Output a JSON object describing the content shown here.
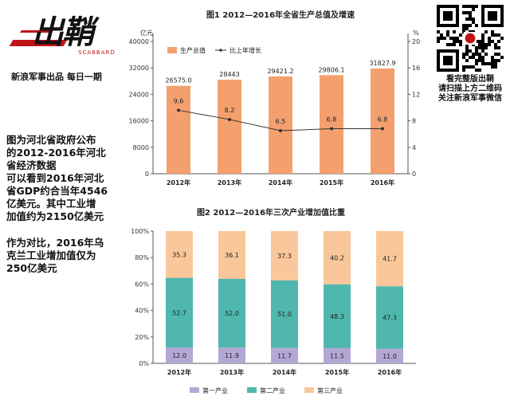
{
  "branding": {
    "logo_text": "出鞘",
    "logo_sub": "SCABBARD",
    "tagline": "新浪军事出品 每日一期",
    "qr_caption": [
      "看完整版出鞘",
      "请扫描上方二维码",
      "关注新浪军事微信"
    ]
  },
  "description": {
    "para1": "图为河北省政府公布\n的2012-2016年河北\n省经济数据\n可以看到2016年河北\n省GDP约合当年4546\n亿美元。其中工业增\n加值约为2150亿美元",
    "para2": "作为对比，2016年乌\n克兰工业增加值仅为\n250亿美元"
  },
  "colors": {
    "gdp_bar": "#f4a06e",
    "growth_line": "#333333",
    "primary": "#b4a7d6",
    "secondary": "#4fb7ad",
    "tertiary": "#f9c79a"
  },
  "chart_data": [
    {
      "type": "bar",
      "title": "图1  2012—2016年全省生产总值及增速",
      "categories": [
        "2012年",
        "2013年",
        "2014年",
        "2015年",
        "2016年"
      ],
      "ylabel_left": "亿元",
      "ylabel_right": "%",
      "ylim_left": [
        0,
        40000
      ],
      "yticks_left": [
        0,
        8000,
        16000,
        24000,
        32000,
        40000
      ],
      "ylim_right": [
        0,
        20
      ],
      "yticks_right": [
        0,
        4,
        8,
        12,
        16,
        20
      ],
      "legend_placement": "top",
      "series": [
        {
          "name": "生产总值",
          "type": "bar",
          "axis": "left",
          "values": [
            26575.0,
            28443,
            29421.2,
            29806.1,
            31827.9
          ],
          "labels": [
            "26575.0",
            "28443",
            "29421.2",
            "29806.1",
            "31827.9"
          ]
        },
        {
          "name": "比上年增长",
          "type": "line",
          "axis": "right",
          "values": [
            9.6,
            8.2,
            6.5,
            6.8,
            6.8
          ],
          "labels": [
            "9.6",
            "8.2",
            "6.5",
            "6.8",
            "6.8"
          ]
        }
      ]
    },
    {
      "type": "bar",
      "stacked": true,
      "title": "图2  2012—2016年三次产业增加值比重",
      "categories": [
        "2012年",
        "2013年",
        "2014年",
        "2015年",
        "2016年"
      ],
      "ylim": [
        0,
        100
      ],
      "yticks": [
        "0%",
        "20%",
        "40%",
        "60%",
        "80%",
        "100%"
      ],
      "legend_placement": "bottom",
      "series": [
        {
          "name": "第一产业",
          "values": [
            12.0,
            11.9,
            11.7,
            11.5,
            11.0
          ],
          "labels": [
            "12.0",
            "11.9",
            "11.7",
            "11.5",
            "11.0"
          ]
        },
        {
          "name": "第二产业",
          "values": [
            52.7,
            52.0,
            51.0,
            48.3,
            47.3
          ],
          "labels": [
            "52.7",
            "52.0",
            "51.0",
            "48.3",
            "47.3"
          ]
        },
        {
          "name": "第三产业",
          "values": [
            35.3,
            36.1,
            37.3,
            40.2,
            41.7
          ],
          "labels": [
            "35.3",
            "36.1",
            "37.3",
            "40.2",
            "41.7"
          ]
        }
      ]
    }
  ]
}
